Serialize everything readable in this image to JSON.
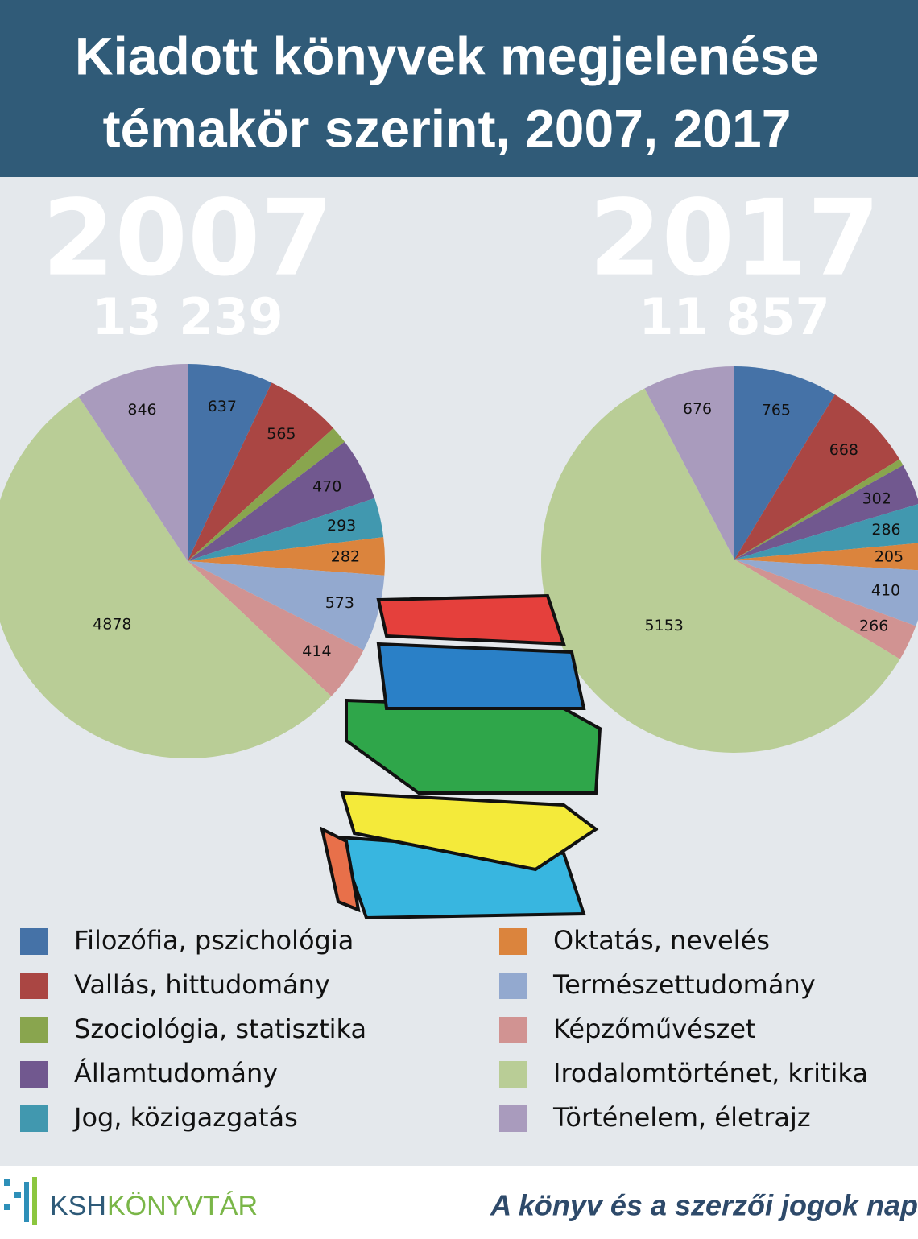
{
  "title": [
    "Kiadott könyvek megjelenése",
    "témakör szerint, 2007, 2017"
  ],
  "chart_data": [
    {
      "type": "pie",
      "title": "2007",
      "subtitle": "13 239",
      "categories": [
        "Filozófia, pszichológia",
        "Vallás, hittudomány",
        "Szociológia, statisztika",
        "Államtudomány",
        "Jog, közigazgatás",
        "Oktatás, nevelés",
        "Természettudomány",
        "Képzőművészet",
        "Irodalomtörténet, kritika",
        "Történelem, életrajz"
      ],
      "values": [
        637,
        565,
        130,
        470,
        293,
        282,
        573,
        414,
        4878,
        846
      ],
      "value_labels": [
        "637",
        "565",
        null,
        "470",
        "293",
        "282",
        "573",
        "414",
        "4878",
        "846"
      ],
      "colors": [
        "#4572a7",
        "#aa4643",
        "#89a54e",
        "#71588f",
        "#4198af",
        "#db843d",
        "#93a9cf",
        "#d19392",
        "#b9cd96",
        "#a99bbd"
      ]
    },
    {
      "type": "pie",
      "title": "2017",
      "subtitle": "11 857",
      "categories": [
        "Filozófia, pszichológia",
        "Vallás, hittudomány",
        "Szociológia, statisztika",
        "Államtudomány",
        "Jog, közigazgatás",
        "Oktatás, nevelés",
        "Természettudomány",
        "Képzőművészet",
        "Irodalomtörténet, kritika",
        "Történelem, életrajz"
      ],
      "values": [
        765,
        668,
        50,
        302,
        286,
        205,
        410,
        266,
        5153,
        676
      ],
      "value_labels": [
        "765",
        "668",
        null,
        "302",
        "286",
        "205",
        "410",
        "266",
        "5153",
        "676"
      ],
      "colors": [
        "#4572a7",
        "#aa4643",
        "#89a54e",
        "#71588f",
        "#4198af",
        "#db843d",
        "#93a9cf",
        "#d19392",
        "#b9cd96",
        "#a99bbd"
      ]
    }
  ],
  "footer": {
    "brand_1": "KSH",
    "brand_2": "KÖNYVTÁR",
    "tagline": "A könyv és a szerzői jogok nap"
  }
}
